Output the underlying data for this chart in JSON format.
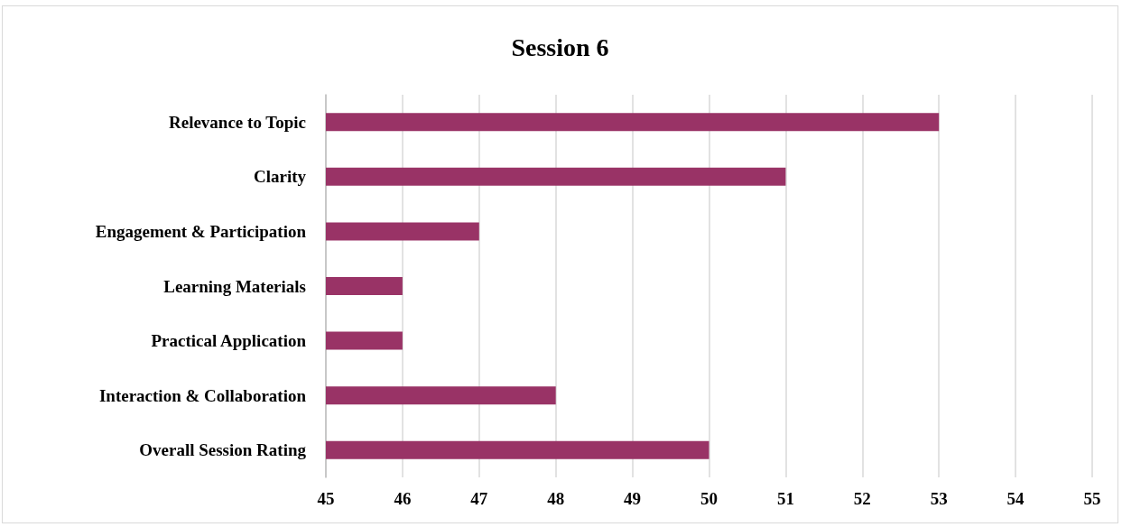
{
  "chart_data": {
    "type": "bar",
    "orientation": "horizontal",
    "title": "Session 6",
    "categories": [
      "Relevance to Topic",
      "Clarity",
      "Engagement & Participation",
      "Learning Materials",
      "Practical Application",
      "Interaction & Collaboration",
      "Overall Session Rating"
    ],
    "values": [
      53,
      51,
      47,
      46,
      46,
      48,
      50
    ],
    "color": "#993366",
    "xlim": [
      45,
      55
    ],
    "xticks": [
      45,
      46,
      47,
      48,
      49,
      50,
      51,
      52,
      53,
      54,
      55
    ],
    "grid": "x"
  }
}
